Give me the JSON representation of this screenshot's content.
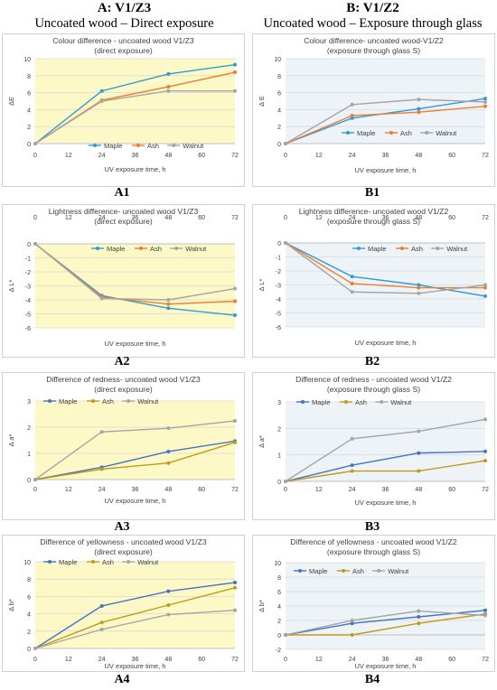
{
  "headers": {
    "left": {
      "title": "A: V1/Z3",
      "subtitle": "Uncoated wood – Direct exposure"
    },
    "right": {
      "title": "B: V1/Z2",
      "subtitle": "Uncoated wood – Exposure through glass"
    }
  },
  "colors": {
    "maple": "#2e9bd6",
    "ash_orange": "#ed7d31",
    "ash_gold": "#c09a1a",
    "walnut": "#a5a5a5",
    "maple_dark": "#4472c4",
    "bg_direct": "#fdf9c6",
    "bg_glass": "#eef3f8"
  },
  "chart_data": [
    {
      "id": "A1",
      "caption": "A1",
      "type": "line",
      "title": "Colour difference - uncoated wood V1/Z3",
      "subtitle": "(direct exposure)",
      "xlabel": "UV exposure time, h",
      "ylabel": "ΔE",
      "xlim": [
        0,
        72
      ],
      "ylim": [
        0,
        10
      ],
      "xticks": [
        "0",
        "12",
        "24",
        "36",
        "48",
        "60",
        "72"
      ],
      "yticks": [
        "0",
        "2",
        "4",
        "6",
        "8",
        "10"
      ],
      "x_axis": "bottom",
      "legend": "bottom",
      "grid": "horizontal",
      "x": [
        0,
        24,
        48,
        72
      ],
      "series": [
        {
          "name": "Maple",
          "values": [
            0,
            6.2,
            8.2,
            9.3
          ],
          "color": "#2e9bd6"
        },
        {
          "name": "Ash",
          "values": [
            0,
            5.1,
            6.7,
            8.4
          ],
          "color": "#ed7d31"
        },
        {
          "name": "Walnut",
          "values": [
            0,
            5.0,
            6.2,
            6.2
          ],
          "color": "#a5a5a5"
        }
      ]
    },
    {
      "id": "B1",
      "caption": "B1",
      "type": "line",
      "title": "Colour difference- uncoated wood-V1/Z2",
      "subtitle": "(exposure through glass S)",
      "xlabel": "UV exposure time, h",
      "ylabel": "Δ E",
      "xlim": [
        0,
        72
      ],
      "ylim": [
        0,
        10
      ],
      "xticks": [
        "0",
        "12",
        "24",
        "36",
        "48",
        "60",
        "72"
      ],
      "yticks": [
        "0",
        "2",
        "4",
        "6",
        "8",
        "10"
      ],
      "x_axis": "bottom",
      "legend": "bottom",
      "grid": "horizontal",
      "x": [
        0,
        24,
        48,
        72
      ],
      "series": [
        {
          "name": "Maple",
          "values": [
            0,
            3.0,
            4.1,
            5.3
          ],
          "color": "#2e9bd6"
        },
        {
          "name": "Ash",
          "values": [
            0,
            3.3,
            3.7,
            4.4
          ],
          "color": "#ed7d31"
        },
        {
          "name": "Walnut",
          "values": [
            0,
            4.6,
            5.2,
            4.9
          ],
          "color": "#a5a5a5"
        }
      ]
    },
    {
      "id": "A2",
      "caption": "A2",
      "type": "line",
      "title": "Lightness difference- uncoated wood V1/Z3",
      "subtitle": "(direct exposure)",
      "xlabel": "UV exposure time, h",
      "ylabel": "Δ L*",
      "xlim": [
        0,
        72
      ],
      "ylim": [
        -6,
        0
      ],
      "xticks": [
        "0",
        "12",
        "24",
        "36",
        "48",
        "60",
        "72"
      ],
      "yticks": [
        "0",
        "-1",
        "-2",
        "-3",
        "-4",
        "-5",
        "-6"
      ],
      "x_axis": "top",
      "legend": "top-right",
      "grid": "horizontal",
      "x": [
        0,
        24,
        48,
        72
      ],
      "series": [
        {
          "name": "Maple",
          "values": [
            0,
            -3.7,
            -4.6,
            -5.1
          ],
          "color": "#2e9bd6"
        },
        {
          "name": "Ash",
          "values": [
            0,
            -3.8,
            -4.3,
            -4.1
          ],
          "color": "#ed7d31"
        },
        {
          "name": "Walnut",
          "values": [
            0,
            -3.9,
            -4.0,
            -3.2
          ],
          "color": "#a5a5a5"
        }
      ]
    },
    {
      "id": "B2",
      "caption": "B2",
      "type": "line",
      "title": "Lightness difference- uncoated wood V1/Z2",
      "subtitle": "(exposure through glass S)",
      "xlabel": "UV exposure time, h",
      "ylabel": "Δ L*",
      "xlim": [
        0,
        72
      ],
      "ylim": [
        -6,
        0
      ],
      "xticks": [
        "0",
        "12",
        "24",
        "36",
        "48",
        "60",
        "72"
      ],
      "yticks": [
        "0",
        "-1",
        "-2",
        "-3",
        "-4",
        "-5",
        "-6"
      ],
      "x_axis": "top",
      "legend": "top-right",
      "grid": "horizontal",
      "x": [
        0,
        24,
        48,
        72
      ],
      "series": [
        {
          "name": "Maple",
          "values": [
            0,
            -2.4,
            -3.0,
            -3.8
          ],
          "color": "#2e9bd6"
        },
        {
          "name": "Ash",
          "values": [
            0,
            -2.9,
            -3.2,
            -3.2
          ],
          "color": "#ed7d31"
        },
        {
          "name": "Walnut",
          "values": [
            0,
            -3.5,
            -3.6,
            -3.0
          ],
          "color": "#a5a5a5"
        }
      ]
    },
    {
      "id": "A3",
      "caption": "A3",
      "type": "line",
      "title": "Difference of redness- uncoated wood V1/Z3",
      "subtitle": "(direct exposure)",
      "xlabel": "UV exposure time, h",
      "ylabel": "Δ a*",
      "xlim": [
        0,
        72
      ],
      "ylim": [
        0,
        3
      ],
      "xticks": [
        "0",
        "12",
        "24",
        "36",
        "48",
        "60",
        "72"
      ],
      "yticks": [
        "0",
        "1",
        "2",
        "3"
      ],
      "x_axis": "bottom",
      "legend": "top-left",
      "grid": "horizontal",
      "x": [
        0,
        24,
        48,
        72
      ],
      "series": [
        {
          "name": "Maple",
          "values": [
            0,
            0.47,
            1.07,
            1.47
          ],
          "color": "#4472c4"
        },
        {
          "name": "Ash",
          "values": [
            0,
            0.4,
            0.63,
            1.42
          ],
          "color": "#c09a1a"
        },
        {
          "name": "Walnut",
          "values": [
            0,
            1.82,
            1.96,
            2.24
          ],
          "color": "#a5a5a5"
        }
      ]
    },
    {
      "id": "B3",
      "caption": "B3",
      "type": "line",
      "title": "Difference of redness - uncoated wood V1/Z2",
      "subtitle": "(exposure through glass S)",
      "xlabel": "UV exposure time, h",
      "ylabel": "Δ a*",
      "xlim": [
        0,
        72
      ],
      "ylim": [
        0,
        3
      ],
      "xticks": [
        "0",
        "12",
        "24",
        "36",
        "48",
        "60",
        "72"
      ],
      "yticks": [
        "0",
        "1",
        "2",
        "3"
      ],
      "x_axis": "bottom",
      "legend": "top-left",
      "grid": "horizontal",
      "x": [
        0,
        24,
        48,
        72
      ],
      "series": [
        {
          "name": "Maple",
          "values": [
            0,
            0.61,
            1.07,
            1.13
          ],
          "color": "#4472c4"
        },
        {
          "name": "Ash",
          "values": [
            0,
            0.39,
            0.39,
            0.78
          ],
          "color": "#c09a1a"
        },
        {
          "name": "Walnut",
          "values": [
            0,
            1.61,
            1.89,
            2.34
          ],
          "color": "#a5a5a5"
        }
      ]
    },
    {
      "id": "A4",
      "caption": "A4",
      "type": "line",
      "title": "Difference of yellowness - uncoated wood V1/Z3",
      "subtitle": "(direct exposure)",
      "xlabel": "UV exposure time, h",
      "ylabel": "Δ b*",
      "xlim": [
        0,
        72
      ],
      "ylim": [
        0,
        10
      ],
      "xticks": [
        "0",
        "12",
        "24",
        "36",
        "48",
        "60",
        "72"
      ],
      "yticks": [
        "0",
        "2",
        "4",
        "6",
        "8",
        "10"
      ],
      "x_axis": "bottom",
      "legend": "top-left",
      "grid": "horizontal",
      "x": [
        0,
        24,
        48,
        72
      ],
      "series": [
        {
          "name": "Maple",
          "values": [
            0,
            4.9,
            6.6,
            7.6
          ],
          "color": "#4472c4"
        },
        {
          "name": "Ash",
          "values": [
            0,
            3.0,
            5.0,
            7.0
          ],
          "color": "#c09a1a"
        },
        {
          "name": "Walnut",
          "values": [
            0,
            2.2,
            3.9,
            4.4
          ],
          "color": "#a5a5a5"
        }
      ]
    },
    {
      "id": "B4",
      "caption": "B4",
      "type": "line",
      "title": "Difference of yellowness - uncoated wood V1/Z2",
      "subtitle": "(exposure through glass S)",
      "xlabel": "UV exposure time, h",
      "ylabel": "Δ b*",
      "xlim": [
        0,
        72
      ],
      "ylim": [
        -2,
        10
      ],
      "xticks": [
        "0",
        "12",
        "24",
        "36",
        "48",
        "60",
        "72"
      ],
      "yticks": [
        "-2",
        "0",
        "2",
        "4",
        "6",
        "8",
        "10"
      ],
      "x_axis": "bottom",
      "legend": "top-left",
      "grid": "horizontal",
      "x": [
        0,
        24,
        48,
        72
      ],
      "series": [
        {
          "name": "Maple",
          "values": [
            0,
            1.6,
            2.5,
            3.4
          ],
          "color": "#4472c4"
        },
        {
          "name": "Ash",
          "values": [
            0,
            0,
            1.6,
            2.9
          ],
          "color": "#c09a1a"
        },
        {
          "name": "Walnut",
          "values": [
            0,
            2.0,
            3.3,
            2.7
          ],
          "color": "#a5a5a5"
        }
      ]
    }
  ]
}
